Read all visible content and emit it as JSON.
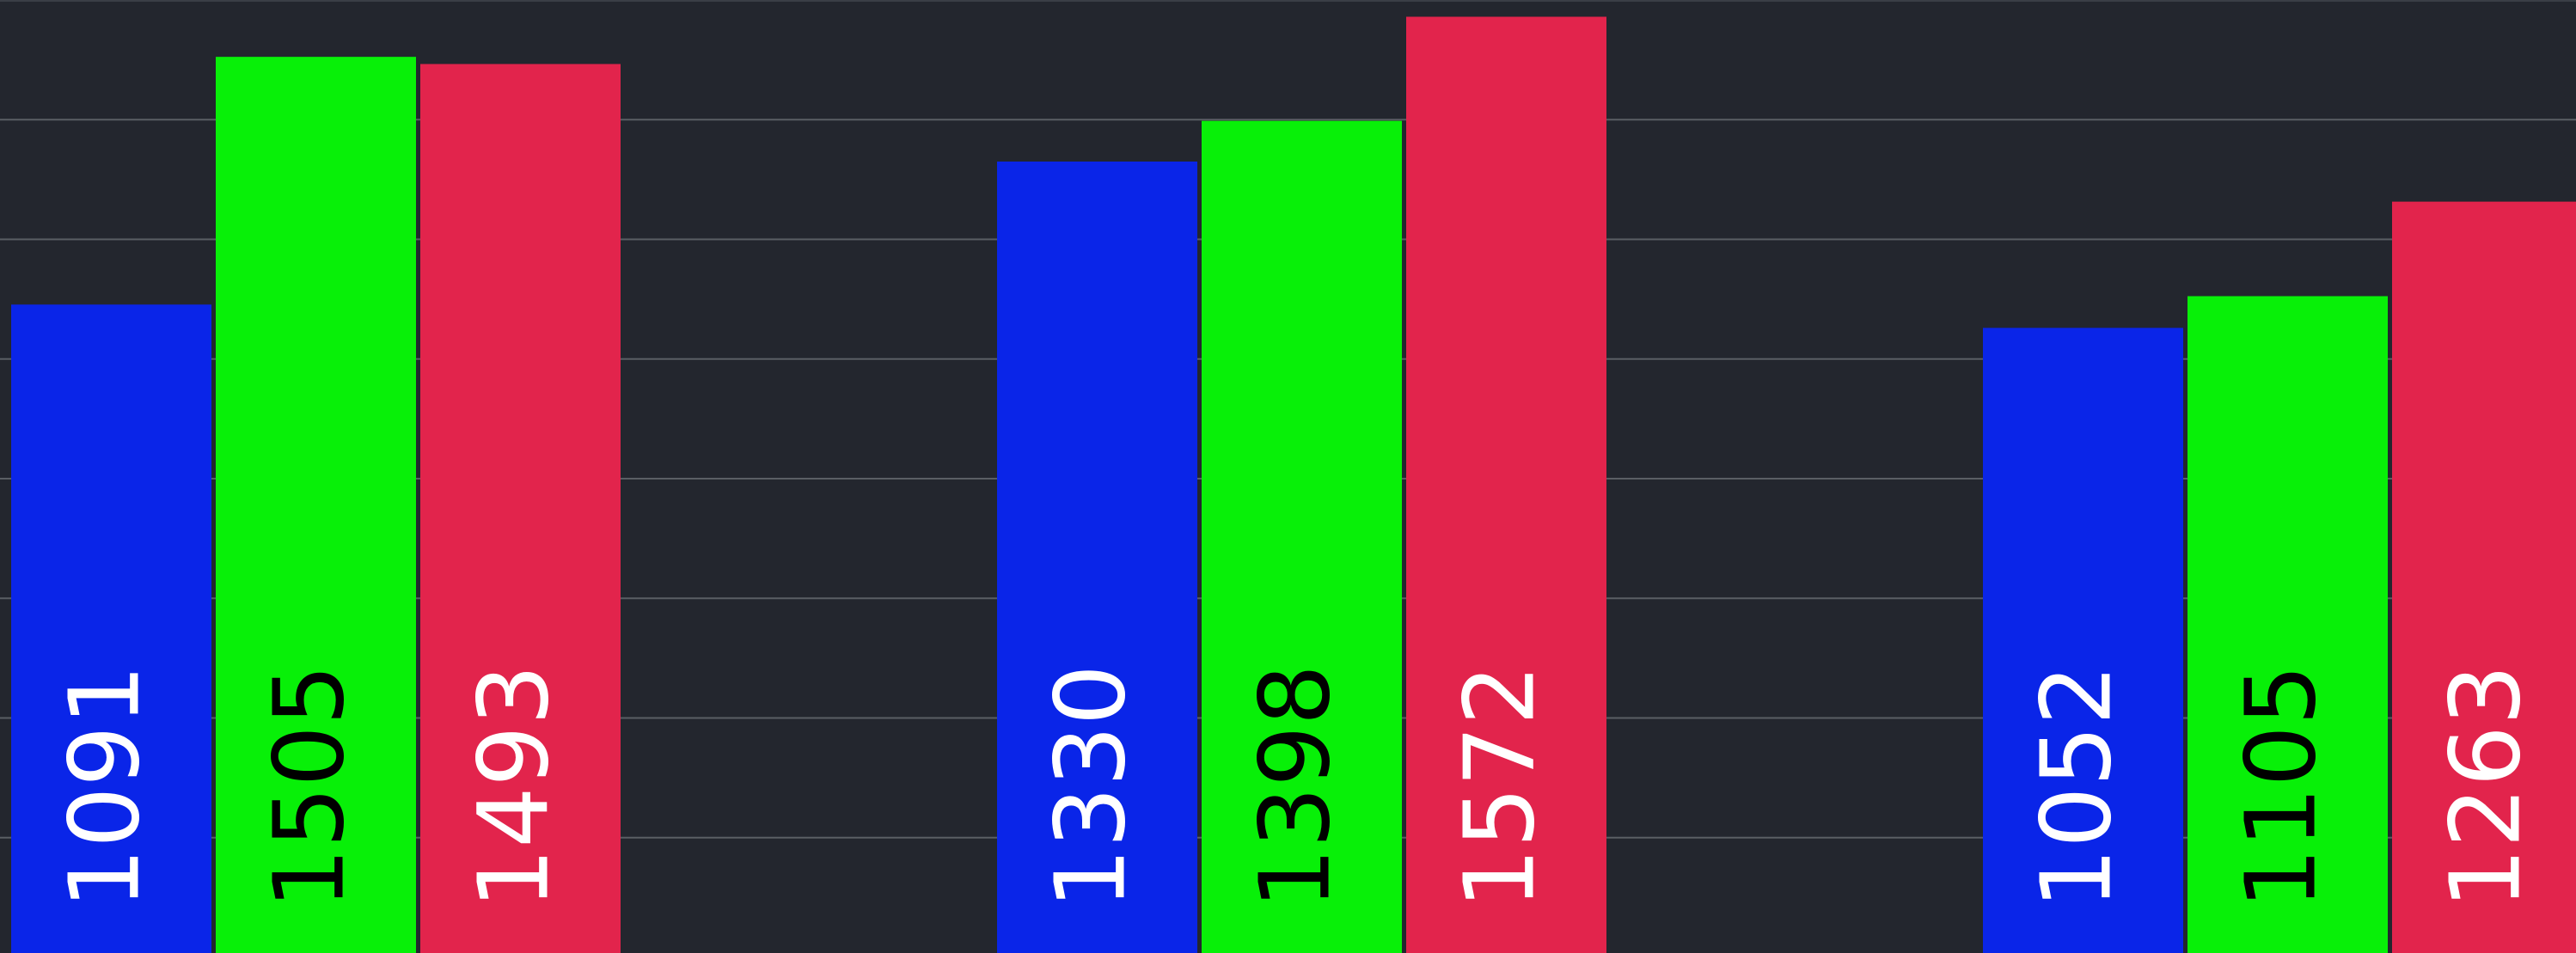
{
  "chart_data": {
    "type": "bar",
    "series": [
      {
        "color": "#0a25e8",
        "label_color": "#ffffff",
        "values": [
          1091,
          1330,
          1052
        ]
      },
      {
        "color": "#08f008",
        "label_color": "#000000",
        "values": [
          1505,
          1398,
          1105
        ]
      },
      {
        "color": "#e2244c",
        "label_color": "#ffffff",
        "values": [
          1493,
          1572,
          1263
        ]
      }
    ],
    "ylim": [
      0,
      1600
    ],
    "yticks": [
      200,
      400,
      600,
      800,
      1000,
      1200,
      1400
    ],
    "grid": true
  }
}
